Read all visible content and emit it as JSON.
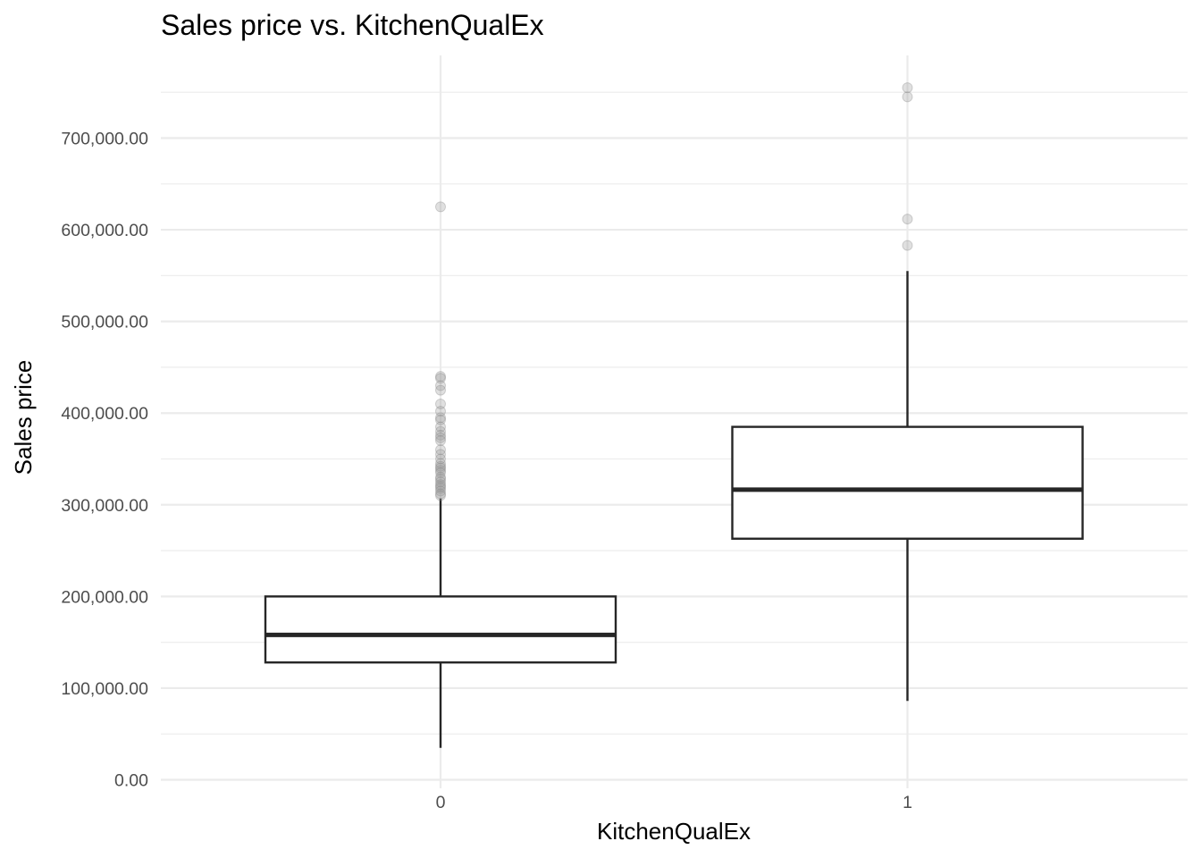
{
  "chart_data": {
    "type": "box",
    "title": "Sales price vs. KitchenQualEx",
    "xlabel": "KitchenQualEx",
    "ylabel": "Sales price",
    "ylim": [
      0,
      755000
    ],
    "y_ticks": [
      0,
      100000,
      200000,
      300000,
      400000,
      500000,
      600000,
      700000
    ],
    "y_tick_labels": [
      "0.00",
      "100,000.00",
      "200,000.00",
      "300,000.00",
      "400,000.00",
      "500,000.00",
      "600,000.00",
      "700,000.00"
    ],
    "grid": true,
    "legend": "none",
    "categories": [
      "0",
      "1"
    ],
    "boxes": [
      {
        "category": "0",
        "whisker_low": 34900,
        "q1": 128000,
        "median": 158000,
        "q3": 200000,
        "whisker_high": 307000,
        "outliers": [
          625000,
          440000,
          438000,
          430000,
          425000,
          410000,
          402000,
          395000,
          392500,
          385000,
          380000,
          376000,
          373000,
          370000,
          360000,
          355000,
          350000,
          345000,
          342000,
          340000,
          337500,
          335000,
          330000,
          328000,
          325000,
          322000,
          320000,
          318000,
          315000,
          312000,
          310000
        ]
      },
      {
        "category": "1",
        "whisker_low": 86000,
        "q1": 263000,
        "median": 316500,
        "q3": 385000,
        "whisker_high": 555000,
        "outliers": [
          755000,
          745000,
          611657,
          582933
        ]
      }
    ]
  }
}
